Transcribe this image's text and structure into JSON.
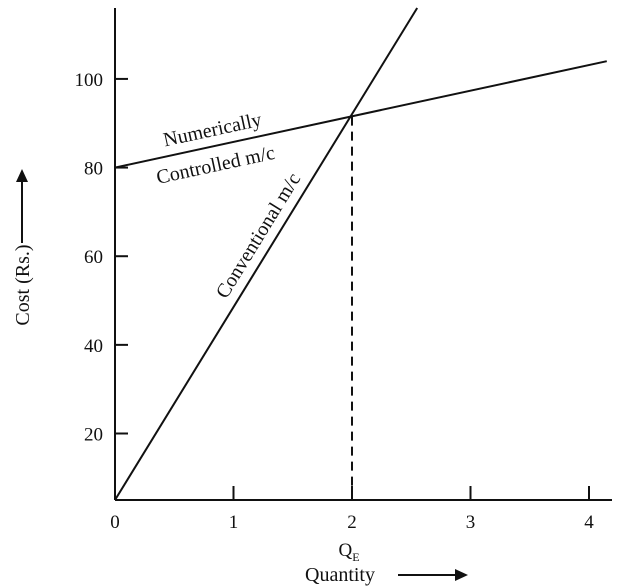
{
  "chart_data": {
    "type": "line",
    "title": "",
    "xlabel": "Quantity",
    "ylabel": "Cost (Rs.)",
    "xlim": [
      0,
      4.2
    ],
    "ylim": [
      5,
      116
    ],
    "x_ticks": [
      0,
      1,
      2,
      3,
      4
    ],
    "y_ticks": [
      20,
      40,
      60,
      80,
      100
    ],
    "grid": false,
    "series": [
      {
        "name": "Conventional m/c",
        "x": [
          0,
          2.55
        ],
        "y": [
          5,
          116
        ],
        "label_lines": [
          "Conventional m/c"
        ]
      },
      {
        "name": "Numerically Controlled m/c",
        "x": [
          0,
          4.15
        ],
        "y": [
          80,
          104
        ],
        "label_lines": [
          "Numerically",
          "Controlled m/c"
        ]
      }
    ],
    "annotations": {
      "breakeven_marker_main": "Q",
      "breakeven_marker_sub": "E",
      "breakeven_x": 2,
      "breakeven_y": 91.5
    }
  }
}
